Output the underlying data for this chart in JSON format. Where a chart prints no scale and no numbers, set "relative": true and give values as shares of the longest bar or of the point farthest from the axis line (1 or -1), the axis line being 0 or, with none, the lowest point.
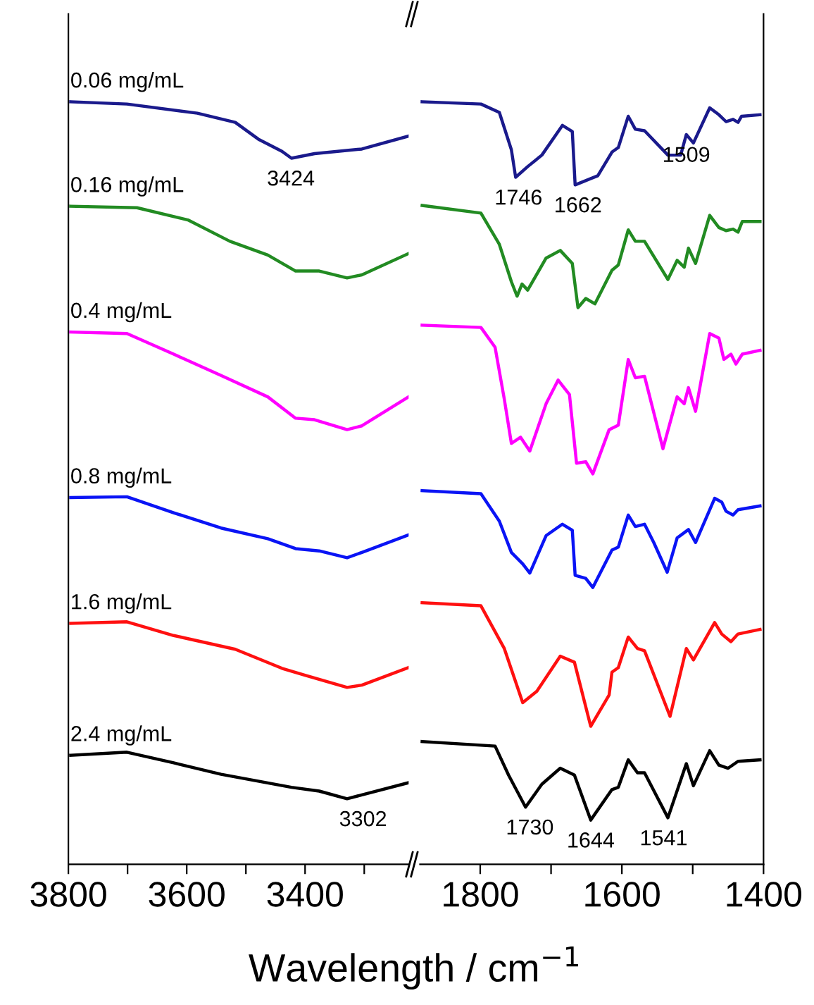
{
  "chart_data": [
    {
      "type": "line",
      "relative": true,
      "xlabel": "Wavelength / cm$^{−1}$",
      "xlim": [
        3800,
        3225
      ],
      "xticks": [
        3800,
        {
          "value": 3700,
          "label": null
        },
        3600,
        {
          "value": 3500,
          "label": null
        },
        3400,
        {
          "value": 3300,
          "label": null
        }
      ],
      "tick_labels": "x",
      "legend": false,
      "grid": false,
      "marker": "none",
      "line_style": "solid",
      "annotations": [
        {
          "text": "3424",
          "x": 3424,
          "y": 0.926
        },
        {
          "text": "3302",
          "x": 3302,
          "y": 0.086
        }
      ],
      "series": [
        {
          "name": "0.06 mg/mL",
          "color": "#1a1a8c",
          "x": [
            3796,
            3701,
            3582,
            3518,
            3479,
            3439,
            3423,
            3384,
            3304,
            3225
          ],
          "values": [
            1.0,
            0.997,
            0.985,
            0.973,
            0.951,
            0.935,
            0.926,
            0.932,
            0.938,
            0.955
          ]
        },
        {
          "name": "0.16 mg/mL",
          "color": "#228b22",
          "x": [
            3796,
            3684,
            3598,
            3527,
            3463,
            3416,
            3376,
            3329,
            3304,
            3225
          ],
          "values": [
            0.863,
            0.861,
            0.845,
            0.817,
            0.799,
            0.778,
            0.778,
            0.769,
            0.773,
            0.801
          ]
        },
        {
          "name": "0.4 mg/mL",
          "color": "#ff00ff",
          "x": [
            3796,
            3701,
            3622,
            3542,
            3463,
            3416,
            3384,
            3329,
            3304,
            3225
          ],
          "values": [
            0.698,
            0.696,
            0.669,
            0.641,
            0.613,
            0.585,
            0.583,
            0.57,
            0.575,
            0.613
          ]
        },
        {
          "name": "0.8 mg/mL",
          "color": "#0a14f5",
          "x": [
            3796,
            3701,
            3622,
            3542,
            3463,
            3416,
            3376,
            3329,
            3304,
            3225
          ],
          "values": [
            0.481,
            0.482,
            0.461,
            0.441,
            0.427,
            0.414,
            0.411,
            0.402,
            0.409,
            0.432
          ]
        },
        {
          "name": "1.6 mg/mL",
          "color": "#ff1010",
          "x": [
            3796,
            3701,
            3622,
            3518,
            3439,
            3400,
            3329,
            3304,
            3225
          ],
          "values": [
            0.316,
            0.318,
            0.3,
            0.282,
            0.257,
            0.248,
            0.232,
            0.235,
            0.258
          ]
        },
        {
          "name": "2.4 mg/mL",
          "color": "#000000",
          "x": [
            3796,
            3701,
            3622,
            3542,
            3423,
            3376,
            3329,
            3304,
            3225
          ],
          "values": [
            0.143,
            0.147,
            0.133,
            0.118,
            0.101,
            0.096,
            0.086,
            0.091,
            0.107
          ]
        }
      ]
    },
    {
      "type": "line",
      "relative": true,
      "xlim": [
        1885,
        1400
      ],
      "xticks": [
        1800,
        {
          "value": 1700,
          "label": null
        },
        1600,
        {
          "value": 1500,
          "label": null
        },
        1400
      ],
      "tick_labels": "x",
      "legend": false,
      "grid": false,
      "marker": "none",
      "line_style": "solid",
      "annotations": [
        {
          "text": "1746",
          "x": 1746,
          "y": 0.901
        },
        {
          "text": "1662",
          "x": 1662,
          "y": 0.891
        },
        {
          "text": "1509",
          "x": 1509,
          "y": 0.957
        },
        {
          "text": "1730",
          "x": 1730,
          "y": 0.075
        },
        {
          "text": "1644",
          "x": 1644,
          "y": 0.058
        },
        {
          "text": "1541",
          "x": 1541,
          "y": 0.061
        }
      ],
      "series": [
        {
          "color": "#1a1a8c",
          "x": [
            1882,
            1799,
            1773,
            1756,
            1750,
            1733,
            1713,
            1684,
            1670,
            1666,
            1634,
            1614,
            1605,
            1591,
            1581,
            1568,
            1535,
            1517,
            1509,
            1499,
            1476,
            1463,
            1453,
            1443,
            1436,
            1431,
            1405
          ],
          "values": [
            1.0,
            0.997,
            0.986,
            0.937,
            0.901,
            0.915,
            0.93,
            0.969,
            0.961,
            0.891,
            0.903,
            0.934,
            0.94,
            0.981,
            0.964,
            0.962,
            0.93,
            0.93,
            0.957,
            0.946,
            0.992,
            0.983,
            0.974,
            0.977,
            0.973,
            0.981,
            0.983
          ]
        },
        {
          "color": "#228b22",
          "x": [
            1882,
            1799,
            1773,
            1756,
            1748,
            1741,
            1733,
            1707,
            1687,
            1670,
            1662,
            1651,
            1638,
            1614,
            1605,
            1591,
            1581,
            1568,
            1535,
            1522,
            1512,
            1506,
            1496,
            1476,
            1463,
            1453,
            1443,
            1436,
            1430,
            1405
          ],
          "values": [
            0.864,
            0.854,
            0.813,
            0.764,
            0.745,
            0.761,
            0.753,
            0.795,
            0.805,
            0.788,
            0.73,
            0.742,
            0.735,
            0.779,
            0.786,
            0.832,
            0.817,
            0.817,
            0.767,
            0.792,
            0.783,
            0.808,
            0.788,
            0.851,
            0.835,
            0.831,
            0.833,
            0.829,
            0.843,
            0.843
          ]
        },
        {
          "color": "#ff00ff",
          "x": [
            1882,
            1799,
            1779,
            1766,
            1756,
            1743,
            1730,
            1707,
            1690,
            1674,
            1664,
            1651,
            1641,
            1618,
            1605,
            1591,
            1581,
            1568,
            1542,
            1522,
            1512,
            1506,
            1496,
            1476,
            1463,
            1456,
            1446,
            1439,
            1430,
            1405
          ],
          "values": [
            0.707,
            0.704,
            0.678,
            0.61,
            0.552,
            0.56,
            0.542,
            0.604,
            0.635,
            0.616,
            0.526,
            0.528,
            0.512,
            0.57,
            0.576,
            0.662,
            0.638,
            0.64,
            0.545,
            0.613,
            0.604,
            0.625,
            0.594,
            0.696,
            0.69,
            0.662,
            0.669,
            0.656,
            0.669,
            0.674
          ]
        },
        {
          "color": "#0a14f5",
          "x": [
            1882,
            1799,
            1773,
            1756,
            1740,
            1730,
            1707,
            1684,
            1670,
            1666,
            1651,
            1641,
            1614,
            1605,
            1591,
            1581,
            1568,
            1555,
            1536,
            1522,
            1506,
            1496,
            1469,
            1459,
            1453,
            1443,
            1436,
            1405
          ],
          "values": [
            0.49,
            0.486,
            0.45,
            0.409,
            0.394,
            0.382,
            0.431,
            0.446,
            0.438,
            0.379,
            0.375,
            0.363,
            0.412,
            0.416,
            0.458,
            0.443,
            0.446,
            0.422,
            0.383,
            0.428,
            0.439,
            0.422,
            0.48,
            0.475,
            0.463,
            0.458,
            0.465,
            0.47
          ]
        },
        {
          "color": "#ff1010",
          "x": [
            1882,
            1799,
            1766,
            1740,
            1720,
            1687,
            1667,
            1644,
            1618,
            1614,
            1605,
            1591,
            1578,
            1568,
            1532,
            1509,
            1499,
            1469,
            1459,
            1446,
            1436,
            1405
          ],
          "values": [
            0.343,
            0.339,
            0.283,
            0.212,
            0.227,
            0.273,
            0.265,
            0.181,
            0.222,
            0.252,
            0.258,
            0.298,
            0.283,
            0.28,
            0.194,
            0.283,
            0.268,
            0.317,
            0.302,
            0.292,
            0.302,
            0.308
          ]
        },
        {
          "color": "#000000",
          "x": [
            1882,
            1779,
            1760,
            1736,
            1713,
            1687,
            1667,
            1644,
            1614,
            1605,
            1591,
            1578,
            1568,
            1535,
            1509,
            1499,
            1476,
            1463,
            1450,
            1436,
            1405
          ],
          "values": [
            0.161,
            0.155,
            0.117,
            0.075,
            0.105,
            0.126,
            0.117,
            0.058,
            0.098,
            0.101,
            0.137,
            0.12,
            0.12,
            0.061,
            0.132,
            0.103,
            0.149,
            0.13,
            0.126,
            0.135,
            0.137
          ]
        }
      ]
    }
  ]
}
